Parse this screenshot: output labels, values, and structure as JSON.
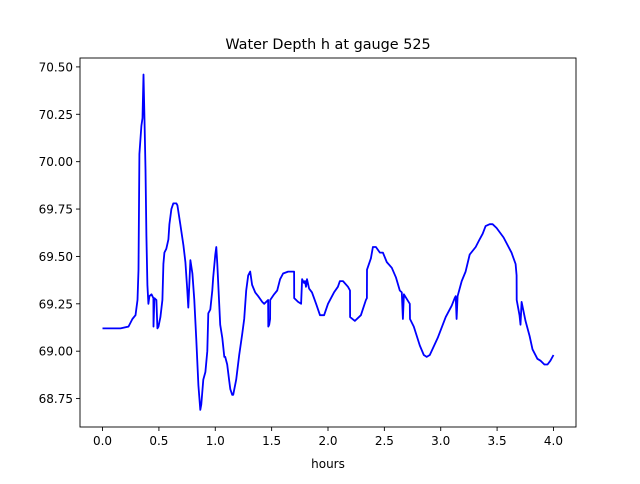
{
  "chart_data": {
    "type": "line",
    "title": "Water Depth h at gauge 525",
    "xlabel": "hours",
    "ylabel": "",
    "xlim": [
      -0.2,
      4.2
    ],
    "ylim": [
      68.6,
      70.547
    ],
    "xticks": [
      0.0,
      0.5,
      1.0,
      1.5,
      2.0,
      2.5,
      3.0,
      3.5,
      4.0
    ],
    "xtick_labels": [
      "0.0",
      "0.5",
      "1.0",
      "1.5",
      "2.0",
      "2.5",
      "3.0",
      "3.5",
      "4.0"
    ],
    "yticks": [
      68.75,
      69.0,
      69.25,
      69.5,
      69.75,
      70.0,
      70.25,
      70.5
    ],
    "ytick_labels": [
      "68.75",
      "69.00",
      "69.25",
      "69.50",
      "69.75",
      "70.00",
      "70.25",
      "70.50"
    ],
    "grid": false,
    "series": [
      {
        "name": "h",
        "color": "#0000ff",
        "points": [
          [
            0,
            69.12
          ],
          [
            0.159,
            69.12
          ],
          [
            0.23,
            69.13
          ],
          [
            0.265,
            69.17
          ],
          [
            0.292,
            69.19
          ],
          [
            0.31,
            69.27
          ],
          [
            0.319,
            69.43
          ],
          [
            0.327,
            70.04
          ],
          [
            0.345,
            70.19
          ],
          [
            0.354,
            70.23
          ],
          [
            0.363,
            70.46
          ],
          [
            0.372,
            70.22
          ],
          [
            0.381,
            69.96
          ],
          [
            0.389,
            69.61
          ],
          [
            0.398,
            69.35
          ],
          [
            0.407,
            69.25
          ],
          [
            0.416,
            69.29
          ],
          [
            0.434,
            69.3
          ],
          [
            0.451,
            69.28
          ],
          [
            0.452,
            69.13
          ],
          [
            0.46,
            69.28
          ],
          [
            0.478,
            69.27
          ],
          [
            0.487,
            69.12
          ],
          [
            0.496,
            69.13
          ],
          [
            0.513,
            69.18
          ],
          [
            0.531,
            69.27
          ],
          [
            0.54,
            69.46
          ],
          [
            0.549,
            69.52
          ],
          [
            0.566,
            69.54
          ],
          [
            0.584,
            69.59
          ],
          [
            0.593,
            69.67
          ],
          [
            0.611,
            69.75
          ],
          [
            0.628,
            69.78
          ],
          [
            0.655,
            69.78
          ],
          [
            0.664,
            69.77
          ],
          [
            0.69,
            69.67
          ],
          [
            0.717,
            69.56
          ],
          [
            0.735,
            69.47
          ],
          [
            0.752,
            69.32
          ],
          [
            0.761,
            69.23
          ],
          [
            0.77,
            69.35
          ],
          [
            0.779,
            69.48
          ],
          [
            0.797,
            69.41
          ],
          [
            0.814,
            69.27
          ],
          [
            0.832,
            69.06
          ],
          [
            0.85,
            68.82
          ],
          [
            0.867,
            68.69
          ],
          [
            0.876,
            68.72
          ],
          [
            0.894,
            68.85
          ],
          [
            0.912,
            68.89
          ],
          [
            0.929,
            69.0
          ],
          [
            0.938,
            69.2
          ],
          [
            0.956,
            69.22
          ],
          [
            0.974,
            69.32
          ],
          [
            0.982,
            69.39
          ],
          [
            1.0,
            69.51
          ],
          [
            1.009,
            69.55
          ],
          [
            1.018,
            69.46
          ],
          [
            1.035,
            69.25
          ],
          [
            1.044,
            69.14
          ],
          [
            1.062,
            69.07
          ],
          [
            1.08,
            68.97
          ],
          [
            1.088,
            68.97
          ],
          [
            1.106,
            68.93
          ],
          [
            1.124,
            68.84
          ],
          [
            1.133,
            68.8
          ],
          [
            1.15,
            68.77
          ],
          [
            1.159,
            68.77
          ],
          [
            1.186,
            68.85
          ],
          [
            1.212,
            68.98
          ],
          [
            1.239,
            69.09
          ],
          [
            1.257,
            69.17
          ],
          [
            1.274,
            69.32
          ],
          [
            1.292,
            69.4
          ],
          [
            1.31,
            69.42
          ],
          [
            1.327,
            69.35
          ],
          [
            1.354,
            69.31
          ],
          [
            1.381,
            69.29
          ],
          [
            1.416,
            69.26
          ],
          [
            1.434,
            69.25
          ],
          [
            1.469,
            69.27
          ],
          [
            1.47,
            69.13
          ],
          [
            1.478,
            69.14
          ],
          [
            1.486,
            69.17
          ],
          [
            1.487,
            69.27
          ],
          [
            1.522,
            69.3
          ],
          [
            1.549,
            69.32
          ],
          [
            1.575,
            69.38
          ],
          [
            1.602,
            69.41
          ],
          [
            1.646,
            69.42
          ],
          [
            1.699,
            69.42
          ],
          [
            1.7,
            69.28
          ],
          [
            1.735,
            69.26
          ],
          [
            1.761,
            69.25
          ],
          [
            1.77,
            69.38
          ],
          [
            1.788,
            69.36
          ],
          [
            1.796,
            69.37
          ],
          [
            1.805,
            69.34
          ],
          [
            1.814,
            69.38
          ],
          [
            1.832,
            69.33
          ],
          [
            1.858,
            69.31
          ],
          [
            1.894,
            69.25
          ],
          [
            1.929,
            69.19
          ],
          [
            1.965,
            69.19
          ],
          [
            2.0,
            69.25
          ],
          [
            2.053,
            69.31
          ],
          [
            2.088,
            69.34
          ],
          [
            2.106,
            69.37
          ],
          [
            2.133,
            69.37
          ],
          [
            2.177,
            69.34
          ],
          [
            2.195,
            69.32
          ],
          [
            2.196,
            69.18
          ],
          [
            2.239,
            69.16
          ],
          [
            2.292,
            69.19
          ],
          [
            2.336,
            69.27
          ],
          [
            2.345,
            69.28
          ],
          [
            2.346,
            69.43
          ],
          [
            2.381,
            69.49
          ],
          [
            2.398,
            69.55
          ],
          [
            2.425,
            69.55
          ],
          [
            2.46,
            69.52
          ],
          [
            2.487,
            69.52
          ],
          [
            2.522,
            69.47
          ],
          [
            2.566,
            69.44
          ],
          [
            2.602,
            69.39
          ],
          [
            2.637,
            69.32
          ],
          [
            2.655,
            69.31
          ],
          [
            2.664,
            69.17
          ],
          [
            2.673,
            69.3
          ],
          [
            2.726,
            69.25
          ],
          [
            2.727,
            69.17
          ],
          [
            2.761,
            69.13
          ],
          [
            2.814,
            69.03
          ],
          [
            2.85,
            68.98
          ],
          [
            2.876,
            68.97
          ],
          [
            2.903,
            68.98
          ],
          [
            2.973,
            69.07
          ],
          [
            3.044,
            69.18
          ],
          [
            3.097,
            69.24
          ],
          [
            3.124,
            69.28
          ],
          [
            3.133,
            69.29
          ],
          [
            3.141,
            69.17
          ],
          [
            3.15,
            69.29
          ],
          [
            3.186,
            69.37
          ],
          [
            3.221,
            69.42
          ],
          [
            3.257,
            69.51
          ],
          [
            3.31,
            69.55
          ],
          [
            3.345,
            69.59
          ],
          [
            3.372,
            69.62
          ],
          [
            3.398,
            69.66
          ],
          [
            3.434,
            69.67
          ],
          [
            3.46,
            69.67
          ],
          [
            3.496,
            69.65
          ],
          [
            3.558,
            69.6
          ],
          [
            3.628,
            69.52
          ],
          [
            3.664,
            69.46
          ],
          [
            3.673,
            69.4
          ],
          [
            3.674,
            69.27
          ],
          [
            3.699,
            69.19
          ],
          [
            3.708,
            69.14
          ],
          [
            3.717,
            69.26
          ],
          [
            3.752,
            69.16
          ],
          [
            3.788,
            69.08
          ],
          [
            3.814,
            69.01
          ],
          [
            3.858,
            68.96
          ],
          [
            3.885,
            68.95
          ],
          [
            3.92,
            68.93
          ],
          [
            3.947,
            68.93
          ],
          [
            3.973,
            68.95
          ],
          [
            4.0,
            68.98
          ]
        ]
      }
    ]
  }
}
